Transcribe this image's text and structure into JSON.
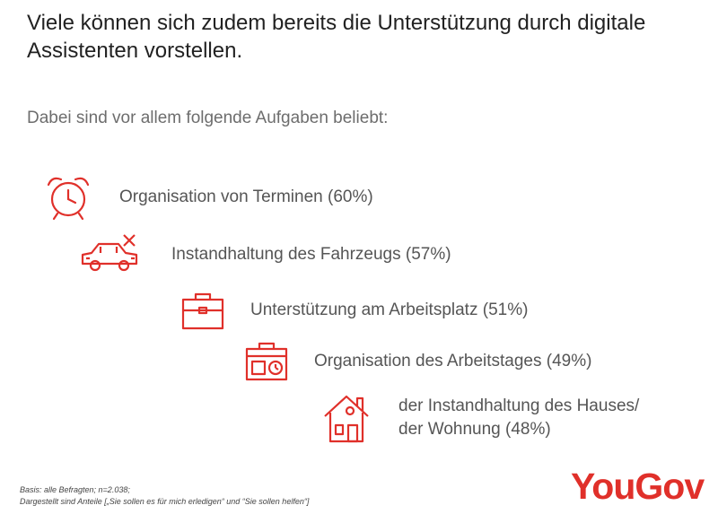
{
  "header": {
    "title": "Viele können sich zudem bereits die Unterstützung durch digitale Assistenten vorstellen.",
    "subtitle": "Dabei sind vor allem folgende Aufgaben beliebt:"
  },
  "items": [
    {
      "icon": "alarm-clock-icon",
      "label": "Organisation von Terminen (60%)",
      "percent": 60
    },
    {
      "icon": "car-repair-icon",
      "label": "Instandhaltung des Fahrzeugs (57%)",
      "percent": 57
    },
    {
      "icon": "briefcase-icon",
      "label": "Unterstützung am Arbeitsplatz (51%)",
      "percent": 51
    },
    {
      "icon": "calendar-briefcase-icon",
      "label": "Organisation des Arbeitstages (49%)",
      "percent": 49
    },
    {
      "icon": "house-icon",
      "label_line1": "der Instandhaltung des Hauses/",
      "label_line2": "der Wohnung (48%)",
      "percent": 48
    }
  ],
  "footer": {
    "basis": "Basis: alle Befragten; n=2.038;",
    "note": "Dargestellt sind Anteile [„Sie sollen es für mich erledigen“ und “Sie sollen helfen“]",
    "logo_part1": "You",
    "logo_part2": "Gov"
  },
  "colors": {
    "accent": "#e0302a",
    "logo_you": "#e0302a",
    "logo_gov": "#e0302a"
  }
}
